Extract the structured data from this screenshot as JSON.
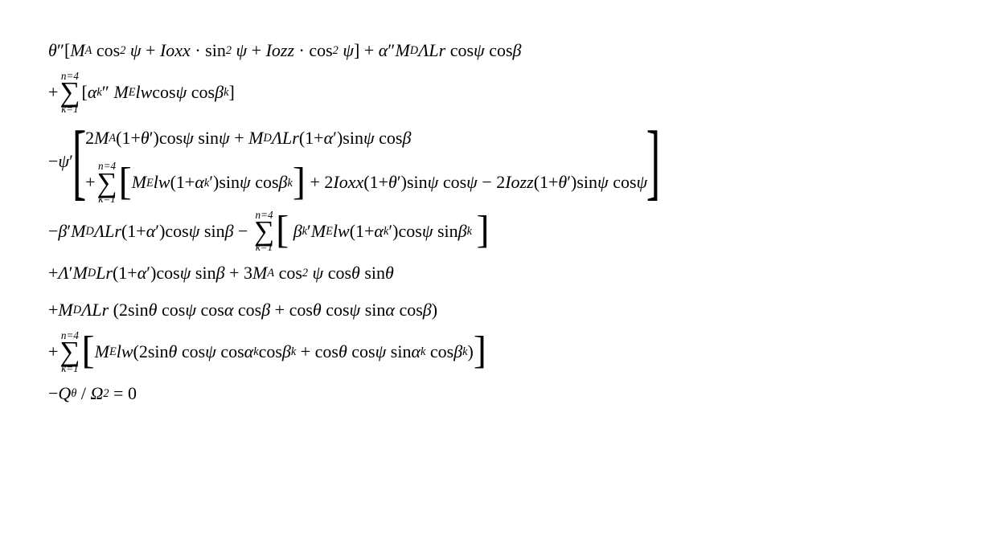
{
  "equation": {
    "type": "math-equation",
    "font_family": "Times New Roman",
    "font_size_pt": 16,
    "text_color": "#000000",
    "background_color": "#ffffff",
    "sum_upper": "n=4",
    "sum_lower": "k=1",
    "lines": {
      "l1": "θ″[M_A cos²ψ + Ioxx·sin²ψ + Iozz·cos²ψ] + α″M_D ΛLr cosψ cosβ",
      "l2": "+ Σ[α_k″ M_E lw cosψ cosβ_k]",
      "l3a": "2M_A(1+θ′)cosψ sinψ + M_D ΛLr(1+α′)sinψ cosβ",
      "l3b": "+ Σ[M_E lw(1+α_k′)sinψ cosβ_k] + 2Ioxx(1+θ′)sinψ cosψ − 2Iozz(1+θ′)sinψ cosψ",
      "l3_prefix": "−ψ′",
      "l4": "−β′M_D ΛLr(1+α′)cosψ sinβ − Σ[β_k′ M_E lw(1+α_k′)cosψ sinβ_k]",
      "l5": "+Λ′M_D Lr(1+α′)cosψ sinβ + 3M_A cos²ψ cosθ sinθ",
      "l6": "+M_D ΛLr(2sinθ cosψ cosα cosβ + cosθ cosψ sinα cosβ)",
      "l7": "+ Σ[M_E lw(2sinθ cosψ cosα_k cosβ_k + cosθ cosψ sinα_k cosβ_k)]",
      "l8": "−Q_θ / Ω² = 0"
    },
    "symbols": {
      "theta": "θ",
      "psi": "ψ",
      "alpha": "α",
      "beta": "β",
      "Lambda": "Λ",
      "Omega": "Ω",
      "M_A": "M_A",
      "M_D": "M_D",
      "M_E": "M_E",
      "Ioxx": "Ioxx",
      "Iozz": "Iozz",
      "Lr": "Lr",
      "lw": "lw",
      "Q_theta": "Q_θ"
    }
  }
}
